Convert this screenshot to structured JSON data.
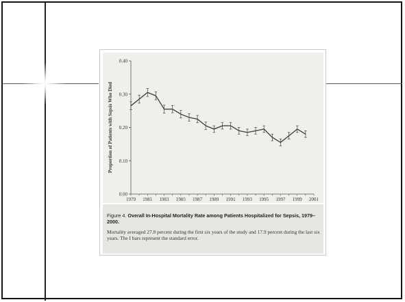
{
  "figure": {
    "label": "Figure 4.",
    "title": "Overall In-Hospital Mortality Rate among Patients Hospitalized for Sepsis, 1979–2000.",
    "body": "Mortality averaged 27.8 percent during the first six years of the study and 17.9 percent during the last six years. The I bars represent the standard error."
  },
  "chart_data": {
    "type": "line",
    "ylabel": "Proportion of Patients with Sepsis Who Died",
    "ylim": [
      0.0,
      0.4
    ],
    "yticks": [
      "0.00",
      "0.10",
      "0.20",
      "0.30",
      "0.40"
    ],
    "xlim": [
      1979,
      2001
    ],
    "xticks": [
      "1979",
      "1981",
      "1983",
      "1985",
      "1987",
      "1989",
      "1991",
      "1993",
      "1995",
      "1997",
      "1999",
      "2001"
    ],
    "error_bars": "standard error",
    "series": [
      {
        "color": "#444444",
        "x": [
          1979,
          1980,
          1981,
          1982,
          1983,
          1984,
          1985,
          1986,
          1987,
          1988,
          1989,
          1990,
          1991,
          1992,
          1993,
          1994,
          1995,
          1996,
          1997,
          1998,
          1999,
          2000
        ],
        "values": [
          0.265,
          0.285,
          0.305,
          0.295,
          0.255,
          0.255,
          0.24,
          0.23,
          0.225,
          0.205,
          0.195,
          0.205,
          0.205,
          0.19,
          0.185,
          0.19,
          0.195,
          0.17,
          0.155,
          0.175,
          0.195,
          0.18
        ],
        "error": [
          0.012,
          0.012,
          0.012,
          0.012,
          0.012,
          0.011,
          0.011,
          0.011,
          0.011,
          0.011,
          0.01,
          0.01,
          0.01,
          0.01,
          0.01,
          0.01,
          0.01,
          0.01,
          0.01,
          0.01,
          0.01,
          0.01
        ]
      }
    ]
  }
}
